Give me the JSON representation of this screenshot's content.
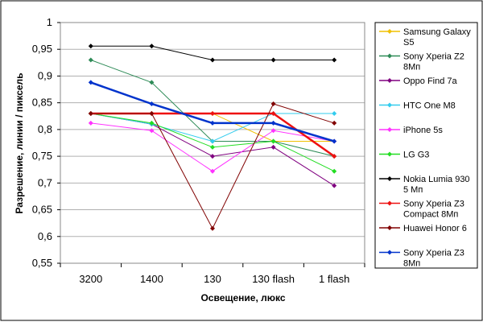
{
  "chart_data": {
    "type": "line",
    "categories": [
      "3200",
      "1400",
      "130",
      "130 flash",
      "1 flash"
    ],
    "xlabel": "Освещение, люкс",
    "ylabel": "Разрешение, линии / пиксель",
    "ylim": [
      0.55,
      1.0
    ],
    "yticks": [
      "1",
      "0,95",
      "0,9",
      "0,85",
      "0,8",
      "0,75",
      "0,7",
      "0,65",
      "0,6",
      "0,55"
    ],
    "ytick_values": [
      1.0,
      0.95,
      0.9,
      0.85,
      0.8,
      0.75,
      0.7,
      0.65,
      0.6,
      0.55
    ],
    "grid": "horizontal",
    "legend_position": "right",
    "series": [
      {
        "name": "Samsung Galaxy S5",
        "label_lines": [
          "Samsung Galaxy",
          "S5"
        ],
        "color": "#f0c000",
        "values": [
          0.83,
          0.83,
          0.83,
          0.778,
          0.778
        ]
      },
      {
        "name": "Sony Xperia Z2 8Мп",
        "label_lines": [
          "Sony Xperia Z2",
          "8Мп"
        ],
        "color": "#2e8b57",
        "values": [
          0.93,
          0.888,
          0.778,
          0.778,
          0.75
        ]
      },
      {
        "name": "Oppo Find 7a",
        "label_lines": [
          "Oppo Find 7a"
        ],
        "color": "#800080",
        "values": [
          0.83,
          0.81,
          0.75,
          0.767,
          0.695
        ]
      },
      {
        "name": "HTC One M8",
        "label_lines": [
          "HTC One M8"
        ],
        "color": "#33ccee",
        "values": [
          0.83,
          0.81,
          0.778,
          0.83,
          0.83
        ]
      },
      {
        "name": "iPhone 5s",
        "label_lines": [
          "iPhone 5s"
        ],
        "color": "#ff33ff",
        "values": [
          0.812,
          0.798,
          0.722,
          0.798,
          0.778
        ]
      },
      {
        "name": "LG G3",
        "label_lines": [
          "LG G3"
        ],
        "color": "#22dd22",
        "values": [
          0.83,
          0.812,
          0.767,
          0.778,
          0.722
        ]
      },
      {
        "name": "Nokia Lumia 930 5 Мп",
        "label_lines": [
          "Nokia Lumia 930",
          "5 Мп"
        ],
        "color": "#000000",
        "values": [
          0.956,
          0.956,
          0.93,
          0.93,
          0.93
        ]
      },
      {
        "name": "Sony Xperia Z3 Compact 8Мп",
        "label_lines": [
          "Sony Xperia Z3",
          "Compact 8Мп"
        ],
        "color": "#ee1111",
        "values": [
          0.83,
          0.83,
          0.83,
          0.83,
          0.75
        ]
      },
      {
        "name": "Huawei Honor 6",
        "label_lines": [
          "Huawei Honor 6"
        ],
        "color": "#800000",
        "values": [
          0.83,
          0.83,
          0.615,
          0.848,
          0.812
        ]
      },
      {
        "name": "Sony Xperia Z3 8Мп",
        "label_lines": [
          "Sony Xperia Z3",
          "8Мп"
        ],
        "color": "#0033cc",
        "values": [
          0.888,
          0.848,
          0.812,
          0.812,
          0.778
        ]
      }
    ]
  }
}
